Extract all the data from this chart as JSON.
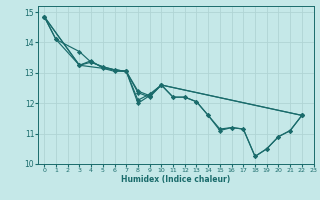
{
  "title": "",
  "xlabel": "Humidex (Indice chaleur)",
  "bg_color": "#c5e8e8",
  "grid_color": "#b0d4d4",
  "line_color": "#1a6b6b",
  "marker_color": "#1a6b6b",
  "xlim": [
    -0.5,
    23
  ],
  "ylim": [
    10,
    15.2
  ],
  "yticks": [
    10,
    11,
    12,
    13,
    14,
    15
  ],
  "xticks": [
    0,
    1,
    2,
    3,
    4,
    5,
    6,
    7,
    8,
    9,
    10,
    11,
    12,
    13,
    14,
    15,
    16,
    17,
    18,
    19,
    20,
    21,
    22,
    23
  ],
  "series1": [
    [
      0,
      14.85
    ],
    [
      1,
      14.1
    ],
    [
      3,
      13.7
    ],
    [
      4,
      13.35
    ],
    [
      5,
      13.2
    ],
    [
      6,
      13.1
    ],
    [
      7,
      13.05
    ],
    [
      8,
      12.4
    ],
    [
      9,
      12.25
    ],
    [
      10,
      12.6
    ],
    [
      11,
      12.2
    ],
    [
      12,
      12.2
    ],
    [
      13,
      12.05
    ],
    [
      14,
      11.6
    ],
    [
      15,
      11.15
    ],
    [
      16,
      11.2
    ],
    [
      17,
      11.15
    ],
    [
      18,
      10.25
    ],
    [
      19,
      10.5
    ],
    [
      20,
      10.9
    ],
    [
      21,
      11.1
    ],
    [
      22,
      11.6
    ]
  ],
  "series2": [
    [
      0,
      14.85
    ],
    [
      3,
      13.25
    ],
    [
      4,
      13.4
    ],
    [
      5,
      13.15
    ],
    [
      6,
      13.05
    ],
    [
      7,
      13.05
    ],
    [
      8,
      12.1
    ],
    [
      9,
      12.3
    ],
    [
      10,
      12.6
    ],
    [
      22,
      11.6
    ]
  ],
  "series3": [
    [
      0,
      14.85
    ],
    [
      1,
      14.1
    ],
    [
      3,
      13.25
    ],
    [
      4,
      13.35
    ],
    [
      5,
      13.2
    ],
    [
      6,
      13.1
    ],
    [
      7,
      13.05
    ],
    [
      8,
      12.35
    ],
    [
      9,
      12.2
    ],
    [
      10,
      12.6
    ],
    [
      22,
      11.6
    ]
  ],
  "series4": [
    [
      0,
      14.85
    ],
    [
      3,
      13.25
    ],
    [
      7,
      13.05
    ],
    [
      8,
      12.0
    ],
    [
      9,
      12.25
    ],
    [
      10,
      12.6
    ],
    [
      11,
      12.2
    ],
    [
      12,
      12.2
    ],
    [
      13,
      12.05
    ],
    [
      14,
      11.6
    ],
    [
      15,
      11.1
    ],
    [
      16,
      11.2
    ],
    [
      17,
      11.15
    ],
    [
      18,
      10.25
    ],
    [
      19,
      10.5
    ],
    [
      20,
      10.9
    ],
    [
      21,
      11.1
    ],
    [
      22,
      11.6
    ]
  ]
}
